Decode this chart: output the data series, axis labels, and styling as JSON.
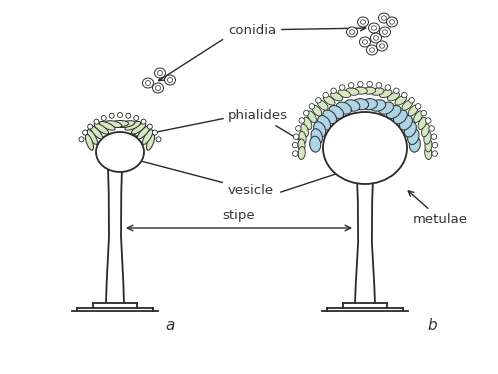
{
  "bg_color": "#ffffff",
  "line_color": "#2a2a2a",
  "green_fill": "#d4e8c2",
  "blue_fill": "#aed4e6",
  "label_color": "#333333",
  "labels": {
    "conidia": "conidia",
    "phialides": "phialides",
    "vesicle": "vesicle",
    "stipe": "stipe",
    "metulae": "metulae",
    "a": "a",
    "b": "b"
  },
  "font_size": 9.5,
  "figsize": [
    4.98,
    3.74
  ],
  "dpi": 100
}
